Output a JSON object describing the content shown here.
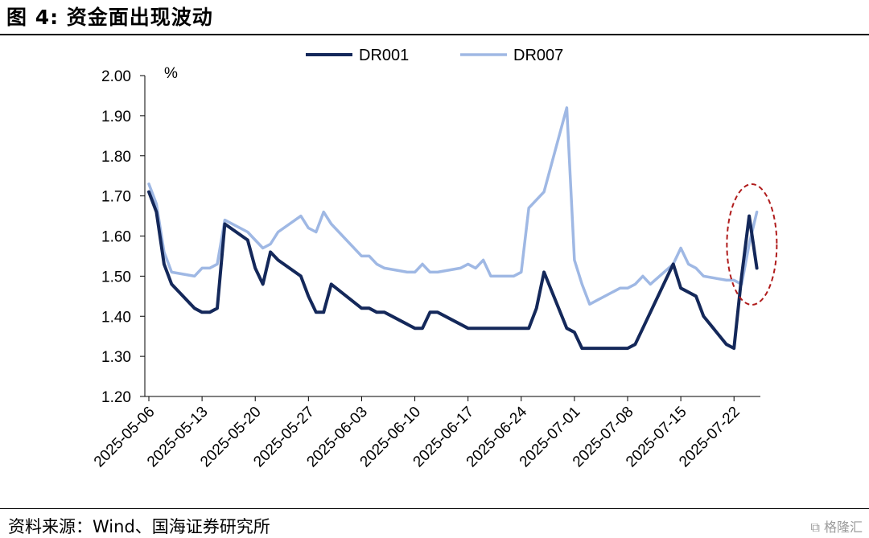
{
  "header": {
    "title": "图 4:  资金面出现波动"
  },
  "footer": {
    "source": "资料来源：Wind、国海证券研究所",
    "watermark": "格隆汇"
  },
  "colors": {
    "DR001": "#14285a",
    "DR007": "#9fb8e4",
    "highlight": "#b01c1c"
  },
  "chart_data": {
    "type": "line",
    "title": "",
    "ylabel": "%",
    "ylim": [
      1.2,
      2.0
    ],
    "yticks": [
      "2.00",
      "1.90",
      "1.80",
      "1.70",
      "1.60",
      "1.50",
      "1.40",
      "1.30",
      "1.20"
    ],
    "xticks": [
      "2025-05-06",
      "2025-05-13",
      "2025-05-20",
      "2025-05-27",
      "2025-06-03",
      "2025-06-10",
      "2025-06-17",
      "2025-06-24",
      "2025-07-01",
      "2025-07-08",
      "2025-07-15",
      "2025-07-22"
    ],
    "x": [
      "2025-05-06",
      "2025-05-07",
      "2025-05-08",
      "2025-05-09",
      "2025-05-12",
      "2025-05-13",
      "2025-05-14",
      "2025-05-15",
      "2025-05-16",
      "2025-05-19",
      "2025-05-20",
      "2025-05-21",
      "2025-05-22",
      "2025-05-23",
      "2025-05-26",
      "2025-05-27",
      "2025-05-28",
      "2025-05-29",
      "2025-05-30",
      "2025-06-03",
      "2025-06-04",
      "2025-06-05",
      "2025-06-06",
      "2025-06-09",
      "2025-06-10",
      "2025-06-11",
      "2025-06-12",
      "2025-06-13",
      "2025-06-16",
      "2025-06-17",
      "2025-06-18",
      "2025-06-19",
      "2025-06-20",
      "2025-06-23",
      "2025-06-24",
      "2025-06-25",
      "2025-06-26",
      "2025-06-27",
      "2025-06-30",
      "2025-07-01",
      "2025-07-02",
      "2025-07-03",
      "2025-07-04",
      "2025-07-07",
      "2025-07-08",
      "2025-07-09",
      "2025-07-10",
      "2025-07-11",
      "2025-07-14",
      "2025-07-15",
      "2025-07-16",
      "2025-07-17",
      "2025-07-18",
      "2025-07-21",
      "2025-07-22",
      "2025-07-23",
      "2025-07-24",
      "2025-07-25"
    ],
    "series": [
      {
        "name": "DR001",
        "values": [
          1.71,
          1.66,
          1.53,
          1.48,
          1.42,
          1.41,
          1.41,
          1.42,
          1.63,
          1.59,
          1.52,
          1.48,
          1.56,
          1.54,
          1.5,
          1.45,
          1.41,
          1.41,
          1.48,
          1.42,
          1.42,
          1.41,
          1.41,
          1.38,
          1.37,
          1.37,
          1.41,
          1.41,
          1.38,
          1.37,
          1.37,
          1.37,
          1.37,
          1.37,
          1.37,
          1.37,
          1.42,
          1.51,
          1.37,
          1.36,
          1.32,
          1.32,
          1.32,
          1.32,
          1.32,
          1.33,
          1.37,
          1.41,
          1.53,
          1.47,
          1.46,
          1.45,
          1.4,
          1.33,
          1.32,
          1.5,
          1.65,
          1.52
        ]
      },
      {
        "name": "DR007",
        "values": [
          1.73,
          1.68,
          1.56,
          1.51,
          1.5,
          1.52,
          1.52,
          1.53,
          1.64,
          1.61,
          1.59,
          1.57,
          1.58,
          1.61,
          1.65,
          1.62,
          1.61,
          1.66,
          1.63,
          1.55,
          1.55,
          1.53,
          1.52,
          1.51,
          1.51,
          1.53,
          1.51,
          1.51,
          1.52,
          1.53,
          1.52,
          1.54,
          1.5,
          1.5,
          1.51,
          1.67,
          1.69,
          1.71,
          1.92,
          1.54,
          1.48,
          1.43,
          1.44,
          1.47,
          1.47,
          1.48,
          1.5,
          1.48,
          1.53,
          1.57,
          1.53,
          1.52,
          1.5,
          1.49,
          1.49,
          1.48,
          1.58,
          1.66
        ]
      }
    ],
    "legend": "top-center",
    "annotations": [
      {
        "type": "dashed-ellipse",
        "around": "2025-07-22 to 2025-07-25 peak"
      }
    ]
  }
}
